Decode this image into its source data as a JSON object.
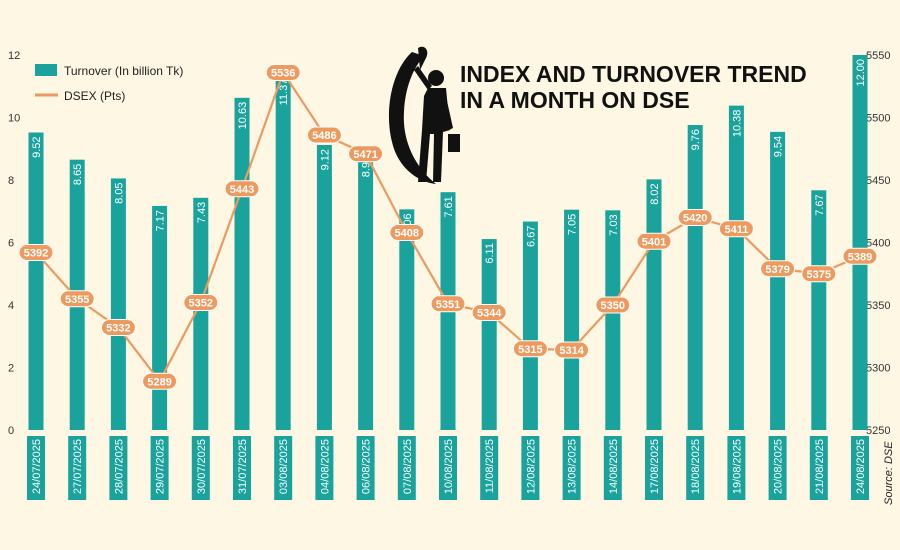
{
  "colors": {
    "bar": "#1aa39c",
    "line": "#ee9a5f",
    "label_bg": "#ee9a5f",
    "date_strip": "#1aa39c",
    "background": "#fdf7e3"
  },
  "chart_data": {
    "type": "bar+line",
    "title_line1": "INDEX AND TURNOVER TREND",
    "title_line2": "IN A MONTH ON DSE",
    "source": "Source: DSE",
    "categories": [
      "24/07/2025",
      "27/07/2025",
      "28/07/2025",
      "29/07/2025",
      "30/07/2025",
      "31/07/2025",
      "03/08/2025",
      "04/08/2025",
      "06/08/2025",
      "07/08/2025",
      "10/08/2025",
      "11/08/2025",
      "12/08/2025",
      "13/08/2025",
      "14/08/2025",
      "17/08/2025",
      "18/08/2025",
      "19/08/2025",
      "20/08/2025",
      "21/08/2025",
      "24/08/2025"
    ],
    "series": [
      {
        "name": "Turnover (In billion Tk)",
        "type": "bar",
        "axis": "left",
        "values": [
          9.52,
          8.65,
          8.05,
          7.17,
          7.43,
          10.63,
          11.37,
          9.12,
          8.9,
          7.06,
          7.61,
          6.11,
          6.67,
          7.05,
          7.03,
          8.02,
          9.76,
          10.38,
          9.54,
          7.67,
          12.0
        ],
        "labels": [
          "9.52",
          "8.65",
          "8.05",
          "7.17",
          "7.43",
          "10.63",
          "11.37",
          "9.12",
          "8.90",
          "7.06",
          "7.61",
          "6.11",
          "6.67",
          "7.05",
          "7.03",
          "8.02",
          "9.76",
          "10.38",
          "9.54",
          "7.67",
          "12.00"
        ]
      },
      {
        "name": "DSEX (Pts)",
        "type": "line",
        "axis": "right",
        "values": [
          5392,
          5355,
          5332,
          5289,
          5352,
          5443,
          5536,
          5486,
          5471,
          5408,
          5351,
          5344,
          5315,
          5314,
          5350,
          5401,
          5420,
          5411,
          5379,
          5375,
          5389
        ],
        "labels": [
          "5392",
          "5355",
          "5332",
          "5289",
          "5352",
          "5443",
          "5536",
          "5486",
          "5471",
          "5408",
          "5351",
          "5344",
          "5315",
          "5314",
          "5350",
          "5401",
          "5420",
          "5411",
          "5379",
          "5375",
          "5389"
        ]
      }
    ],
    "left_axis": {
      "ylim": [
        0,
        12
      ],
      "ticks": [
        "0",
        "2",
        "4",
        "6",
        "8",
        "10",
        "12"
      ]
    },
    "right_axis": {
      "ylim": [
        5250,
        5550
      ],
      "ticks": [
        "5250",
        "5300",
        "5350",
        "5400",
        "5450",
        "5500",
        "5550"
      ]
    },
    "legend_position": "top-left"
  }
}
